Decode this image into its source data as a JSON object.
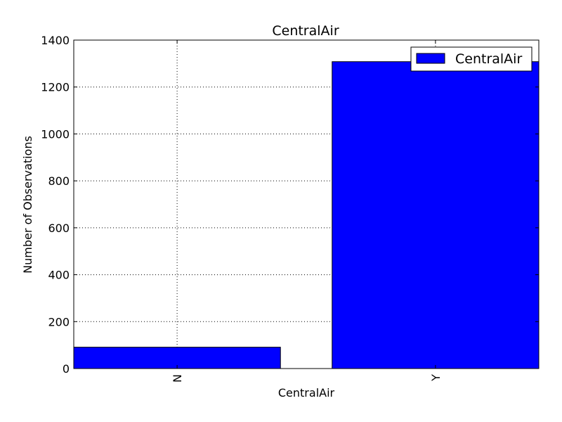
{
  "chart_data": {
    "type": "bar",
    "title": "CentralAir",
    "xlabel": "CentralAir",
    "ylabel": "Number of Observations",
    "categories": [
      "N",
      "Y"
    ],
    "series": [
      {
        "name": "CentralAir",
        "values": [
          91,
          1308
        ]
      }
    ],
    "ylim": [
      0,
      1400
    ],
    "yticks": [
      0,
      200,
      400,
      600,
      800,
      1000,
      1200,
      1400
    ],
    "ytick_labels": [
      "0",
      "200",
      "400",
      "600",
      "800",
      "1000",
      "1200",
      "1400"
    ],
    "x_tick_rotation": "vertical",
    "grid": true,
    "legend_position": "top-right",
    "colors": {
      "bar": "#0000ff",
      "edge": "#000000",
      "grid": "#000000"
    }
  }
}
